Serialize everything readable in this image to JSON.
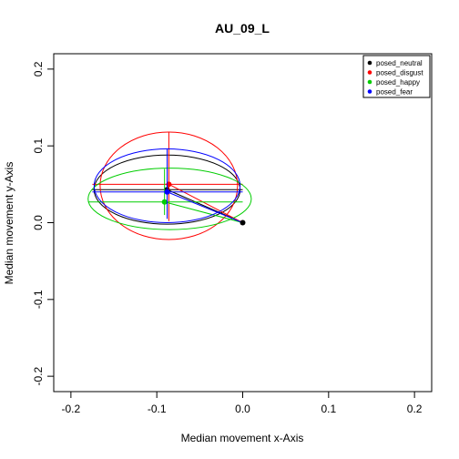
{
  "chart_data": {
    "type": "scatter",
    "title": "AU_09_L",
    "xlabel": "Median movement x-Axis",
    "ylabel": "Median movement y-Axis",
    "xlim": [
      -0.22,
      0.22
    ],
    "ylim": [
      -0.22,
      0.22
    ],
    "xticks": [
      -0.2,
      -0.1,
      0.0,
      0.1,
      0.2
    ],
    "yticks": [
      -0.2,
      -0.1,
      0.0,
      0.1,
      0.2
    ],
    "xtick_labels": [
      "-0.2",
      "-0.1",
      "0.0",
      "0.1",
      "0.2"
    ],
    "ytick_labels": [
      "-0.2",
      "-0.1",
      "0.0",
      "0.1",
      "0.2"
    ],
    "grid": false,
    "legend_position": "top-right",
    "series": [
      {
        "name": "posed_neutral",
        "color": "#000000",
        "point": [
          0.0,
          0.0
        ],
        "median": [
          -0.088,
          0.043
        ],
        "ellipse": {
          "cx": -0.088,
          "cy": 0.043,
          "rx": 0.085,
          "ry": 0.045
        },
        "cross_x": [
          -0.175,
          0.0
        ],
        "cross_y": [
          0.006,
          0.088
        ]
      },
      {
        "name": "posed_disgust",
        "color": "#ff0000",
        "point": [
          0.0,
          0.0
        ],
        "median": [
          -0.086,
          0.05
        ],
        "ellipse": {
          "cx": -0.086,
          "cy": 0.048,
          "rx": 0.08,
          "ry": 0.07
        },
        "cross_x": [
          -0.175,
          0.0
        ],
        "cross_y": [
          0.002,
          0.118
        ]
      },
      {
        "name": "posed_happy",
        "color": "#00cd00",
        "point": [
          0.0,
          0.0
        ],
        "median": [
          -0.091,
          0.027
        ],
        "ellipse": {
          "cx": -0.085,
          "cy": 0.031,
          "rx": 0.095,
          "ry": 0.04
        },
        "cross_x": [
          -0.18,
          0.0
        ],
        "cross_y": [
          0.01,
          0.07
        ]
      },
      {
        "name": "posed_fear",
        "color": "#0000ff",
        "point": [
          0.0,
          0.0
        ],
        "median": [
          -0.088,
          0.04
        ],
        "ellipse": {
          "cx": -0.088,
          "cy": 0.048,
          "rx": 0.085,
          "ry": 0.048
        },
        "cross_x": [
          -0.175,
          0.0
        ],
        "cross_y": [
          0.005,
          0.096
        ]
      }
    ]
  }
}
